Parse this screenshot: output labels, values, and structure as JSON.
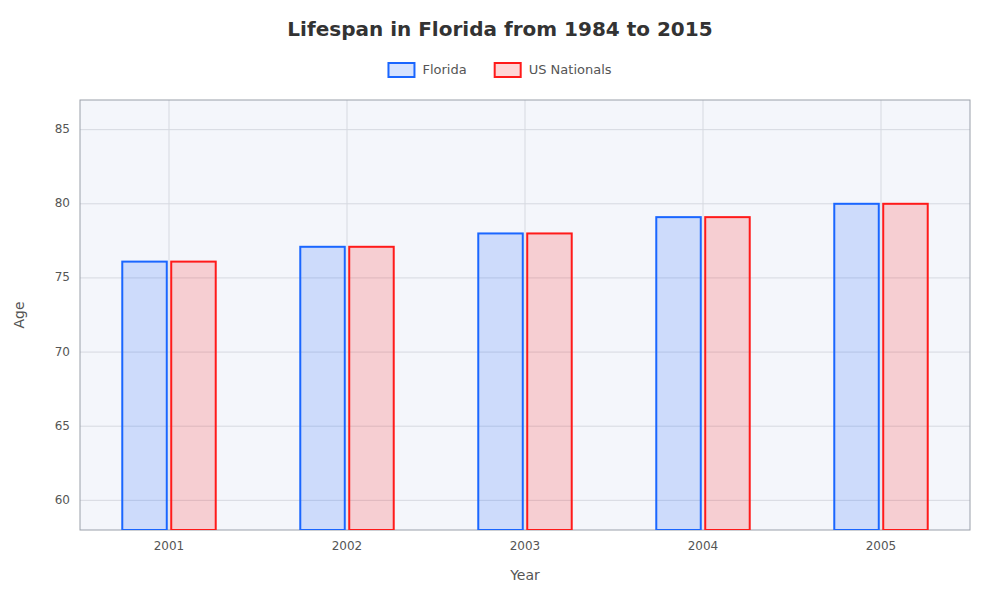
{
  "chart_data": {
    "type": "bar",
    "title": "Lifespan in Florida from 1984 to 2015",
    "xlabel": "Year",
    "ylabel": "Age",
    "categories": [
      "2001",
      "2002",
      "2003",
      "2004",
      "2005"
    ],
    "series": [
      {
        "name": "Florida",
        "color": "#1a66ff",
        "values": [
          76.1,
          77.1,
          78.0,
          79.1,
          80.0
        ]
      },
      {
        "name": "US Nationals",
        "color": "#ff1a1a",
        "values": [
          76.1,
          77.1,
          78.0,
          79.1,
          80.0
        ]
      }
    ],
    "ylim": [
      58,
      87
    ],
    "yticks": [
      60,
      65,
      70,
      75,
      80,
      85
    ],
    "grid": true,
    "legend": "top"
  }
}
